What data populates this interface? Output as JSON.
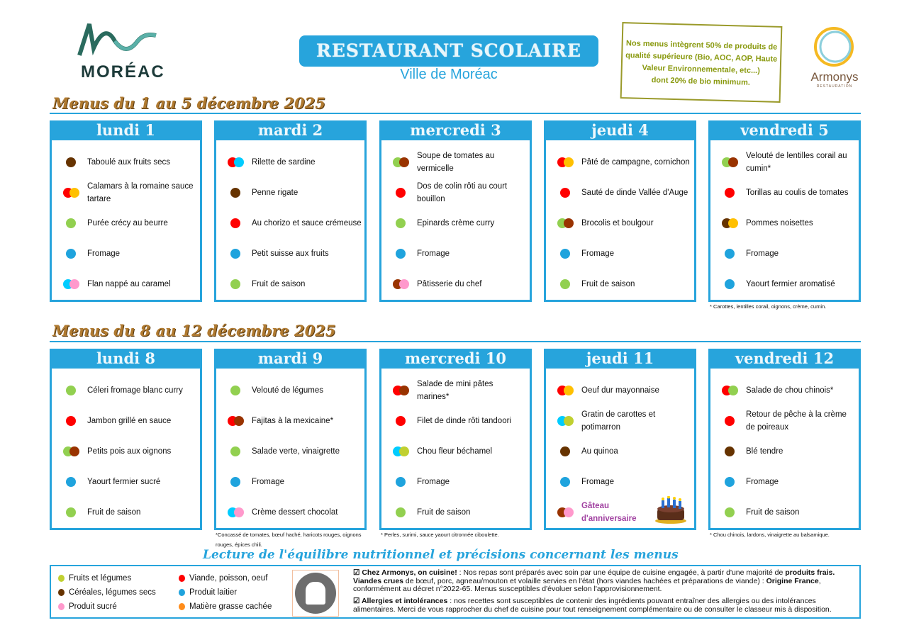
{
  "header": {
    "logo_text": "MORÉAC",
    "title": "RESTAURANT SCOLAIRE",
    "subtitle": "Ville de Moréac",
    "quality_note": [
      "Nos menus intègrent 50% de produits de",
      "qualité supérieure (Bio, AOC, AOP, Haute",
      "Valeur Environnementale, etc...)",
      "dont 20% de bio minimum."
    ],
    "partner_logo": "Armonys",
    "partner_sub": "RESTAURATION"
  },
  "colors": {
    "accent": "#27a4dc",
    "green": "#92d050",
    "brown": "#663300",
    "rust": "#993300",
    "red": "#ff0000",
    "blue": "#1fa3dd",
    "cyan": "#00ccff",
    "pink": "#ff99cc",
    "yellow": "#ffc000",
    "lime": "#c0d030",
    "orange": "#ff8c1a",
    "birthday": "#a040a0"
  },
  "weeks": [
    {
      "title": "Menus du 1 au 5 décembre 2025",
      "days": [
        {
          "name": "lundi 1",
          "items": [
            {
              "label": "Taboulé aux fruits secs",
              "dots": [
                "brown"
              ]
            },
            {
              "label": "Calamars à la romaine sauce tartare",
              "dots": [
                "red",
                "yellow"
              ]
            },
            {
              "label": "Purée crécy au beurre",
              "dots": [
                "green"
              ]
            },
            {
              "label": "Fromage",
              "dots": [
                "blue"
              ]
            },
            {
              "label": "Flan nappé au caramel",
              "dots": [
                "cyan",
                "pink"
              ]
            }
          ]
        },
        {
          "name": "mardi 2",
          "items": [
            {
              "label": "Rilette de sardine",
              "dots": [
                "red",
                "cyan"
              ]
            },
            {
              "label": "Penne rigate",
              "dots": [
                "brown"
              ]
            },
            {
              "label": "Au chorizo et sauce crémeuse",
              "dots": [
                "red"
              ]
            },
            {
              "label": "Petit suisse aux fruits",
              "dots": [
                "blue"
              ]
            },
            {
              "label": "Fruit de saison",
              "dots": [
                "green"
              ]
            }
          ]
        },
        {
          "name": "mercredi 3",
          "items": [
            {
              "label": "Soupe de tomates au vermicelle",
              "dots": [
                "green",
                "rust"
              ]
            },
            {
              "label": "Dos de colin rôti au court bouillon",
              "dots": [
                "red"
              ]
            },
            {
              "label": "Epinards crème curry",
              "dots": [
                "green"
              ]
            },
            {
              "label": "Fromage",
              "dots": [
                "blue"
              ]
            },
            {
              "label": "Pâtisserie du chef",
              "dots": [
                "rust",
                "pink"
              ]
            }
          ]
        },
        {
          "name": "jeudi 4",
          "items": [
            {
              "label": "Pâté de campagne, cornichon",
              "dots": [
                "red",
                "yellow"
              ]
            },
            {
              "label": "Sauté de dinde Vallée d'Auge",
              "dots": [
                "red"
              ]
            },
            {
              "label": "Brocolis et boulgour",
              "dots": [
                "green",
                "rust"
              ]
            },
            {
              "label": "Fromage",
              "dots": [
                "blue"
              ]
            },
            {
              "label": "Fruit de saison",
              "dots": [
                "green"
              ]
            }
          ]
        },
        {
          "name": "vendredi 5",
          "note": "* Carottes, lentilles corail, oignons, crème, cumin.",
          "items": [
            {
              "label": "Velouté de lentilles corail au cumin*",
              "dots": [
                "green",
                "rust"
              ]
            },
            {
              "label": "Torillas au coulis de tomates",
              "dots": [
                "red"
              ]
            },
            {
              "label": "Pommes noisettes",
              "dots": [
                "brown",
                "yellow"
              ]
            },
            {
              "label": "Fromage",
              "dots": [
                "blue"
              ]
            },
            {
              "label": "Yaourt fermier aromatisé",
              "dots": [
                "blue"
              ]
            }
          ]
        }
      ]
    },
    {
      "title": "Menus du 8 au 12 décembre 2025",
      "days": [
        {
          "name": "lundi 8",
          "items": [
            {
              "label": "Céleri fromage blanc curry",
              "dots": [
                "green"
              ]
            },
            {
              "label": "Jambon grillé en sauce",
              "dots": [
                "red"
              ]
            },
            {
              "label": "Petits pois aux oignons",
              "dots": [
                "green",
                "rust"
              ]
            },
            {
              "label": "Yaourt fermier sucré",
              "dots": [
                "blue"
              ]
            },
            {
              "label": "Fruit de saison",
              "dots": [
                "green"
              ]
            }
          ]
        },
        {
          "name": "mardi 9",
          "note": "*Concassé de tomates, bœuf haché, haricots rouges, oignons rouges, épices chili.",
          "items": [
            {
              "label": "Velouté de légumes",
              "dots": [
                "green"
              ]
            },
            {
              "label": "Fajitas à la mexicaine*",
              "dots": [
                "red",
                "rust"
              ]
            },
            {
              "label": "Salade verte, vinaigrette",
              "dots": [
                "green"
              ]
            },
            {
              "label": "Fromage",
              "dots": [
                "blue"
              ]
            },
            {
              "label": "Crème dessert chocolat",
              "dots": [
                "cyan",
                "pink"
              ]
            }
          ]
        },
        {
          "name": "mercredi 10",
          "note": "* Perles, surimi, sauce yaourt citronnée ciboulette.",
          "items": [
            {
              "label": "Salade de mini pâtes marines*",
              "dots": [
                "red",
                "rust"
              ]
            },
            {
              "label": "Filet de dinde rôti tandoori",
              "dots": [
                "red"
              ]
            },
            {
              "label": "Chou fleur béchamel",
              "dots": [
                "cyan",
                "lime"
              ]
            },
            {
              "label": "Fromage",
              "dots": [
                "blue"
              ]
            },
            {
              "label": "Fruit de saison",
              "dots": [
                "green"
              ]
            }
          ]
        },
        {
          "name": "jeudi 11",
          "items": [
            {
              "label": "Oeuf dur mayonnaise",
              "dots": [
                "red",
                "yellow"
              ]
            },
            {
              "label": "Gratin de carottes et potimarron",
              "dots": [
                "cyan",
                "lime"
              ]
            },
            {
              "label": "Au quinoa",
              "dots": [
                "brown"
              ]
            },
            {
              "label": "Fromage",
              "dots": [
                "blue"
              ]
            },
            {
              "label": "Gâteau d'anniversaire",
              "dots": [
                "rust",
                "pink"
              ],
              "highlight": true
            }
          ]
        },
        {
          "name": "vendredi 12",
          "note": "* Chou chinois, lardons, vinaigrette au balsamique.",
          "items": [
            {
              "label": "Salade de chou chinois*",
              "dots": [
                "red",
                "green"
              ]
            },
            {
              "label": "Retour de pêche à la crème de poireaux",
              "dots": [
                "red"
              ]
            },
            {
              "label": "Blé tendre",
              "dots": [
                "brown"
              ]
            },
            {
              "label": "Fromage",
              "dots": [
                "blue"
              ]
            },
            {
              "label": "Fruit de saison",
              "dots": [
                "green"
              ]
            }
          ]
        }
      ]
    }
  ],
  "legend": {
    "title": "Lecture de l'équilibre nutritionnel et précisions concernant les menus",
    "items": [
      {
        "label": "Fruits et légumes",
        "color": "lime"
      },
      {
        "label": "Céréales, légumes secs",
        "color": "brown"
      },
      {
        "label": "Produit sucré",
        "color": "pink"
      },
      {
        "label": "Viande, poisson, oeuf",
        "color": "red"
      },
      {
        "label": "Produit laitier",
        "color": "blue"
      },
      {
        "label": "Matière grasse cachée",
        "color": "orange"
      }
    ],
    "info1_bold": "☑ Chez Armonys, on cuisine!",
    "info1_a": " : Nos repas sont préparés avec soin par une équipe de cuisine engagée, à partir d'une majorité de ",
    "info1_bold2": "produits frais.",
    "info1_bold3": "Viandes crues",
    "info1_b": " de bœuf, porc, agneau/mouton et volaille servies en l'état (hors viandes hachées et préparations de viande) : ",
    "info1_bold4": "Origine France",
    "info1_c": ", conformément au décret n°2022-65. Menus susceptibles d'évoluer selon l'approvisionnement.",
    "info2_bold": "☑ Allergies et intolérances",
    "info2": " : nos recettes sont susceptibles de contenir des ingrédients pouvant entraîner des allergies ou des intolérances alimentaires. Merci de vous rapprocher du chef de cuisine pour tout renseignement complémentaire ou de consulter le classeur mis à disposition."
  }
}
